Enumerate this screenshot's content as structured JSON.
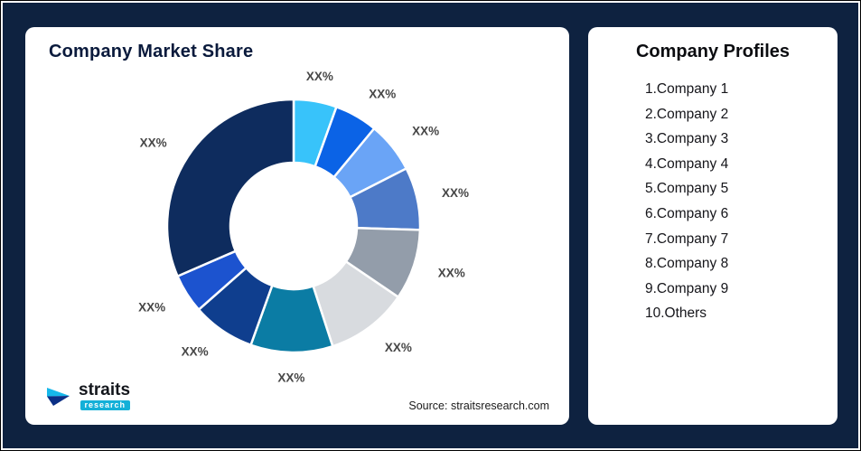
{
  "frame": {
    "background": "#0e2240",
    "card_background": "#ffffff"
  },
  "market_share_card": {
    "title": "Company Market Share",
    "source": "Source: straitsresearch.com",
    "logo": {
      "brand": "straits",
      "sub": "research",
      "accent": "#14b0d8"
    }
  },
  "profiles_card": {
    "title": "Company Profiles",
    "items": [
      "1.Company 1",
      "2.Company 2",
      "3.Company 3",
      "4.Company 4",
      "5.Company 5",
      "6.Company 6",
      "7.Company 7",
      "8.Company 8",
      "9.Company 9",
      "10.Others"
    ]
  },
  "chart_data": {
    "type": "pie",
    "title": "Company Market Share",
    "donut": true,
    "inner_radius_ratio": 0.5,
    "start_angle_deg": -90,
    "direction": "clockwise",
    "legend_position": "none",
    "source": "Source: straitsresearch.com",
    "slices": [
      {
        "name": "Company 1",
        "value": 5.5,
        "label": "XX%",
        "color": "#38c3fa"
      },
      {
        "name": "Company 2",
        "value": 5.5,
        "label": "XX%",
        "color": "#0b63e6"
      },
      {
        "name": "Company 3",
        "value": 6.5,
        "label": "XX%",
        "color": "#6aa4f6"
      },
      {
        "name": "Company 4",
        "value": 8,
        "label": "XX%",
        "color": "#4d7ac8"
      },
      {
        "name": "Company 5",
        "value": 9,
        "label": "XX%",
        "color": "#939daa"
      },
      {
        "name": "Company 6",
        "value": 10.5,
        "label": "XX%",
        "color": "#d8dbdf"
      },
      {
        "name": "Company 7",
        "value": 10.5,
        "label": "XX%",
        "color": "#0b7ca4"
      },
      {
        "name": "Company 8",
        "value": 8,
        "label": "XX%",
        "color": "#0f3e8e"
      },
      {
        "name": "Company 9",
        "value": 5,
        "label": "XX%",
        "color": "#1c53cf"
      },
      {
        "name": "Others",
        "value": 31.5,
        "label": "XX%",
        "color": "#0e2c5e"
      }
    ]
  }
}
